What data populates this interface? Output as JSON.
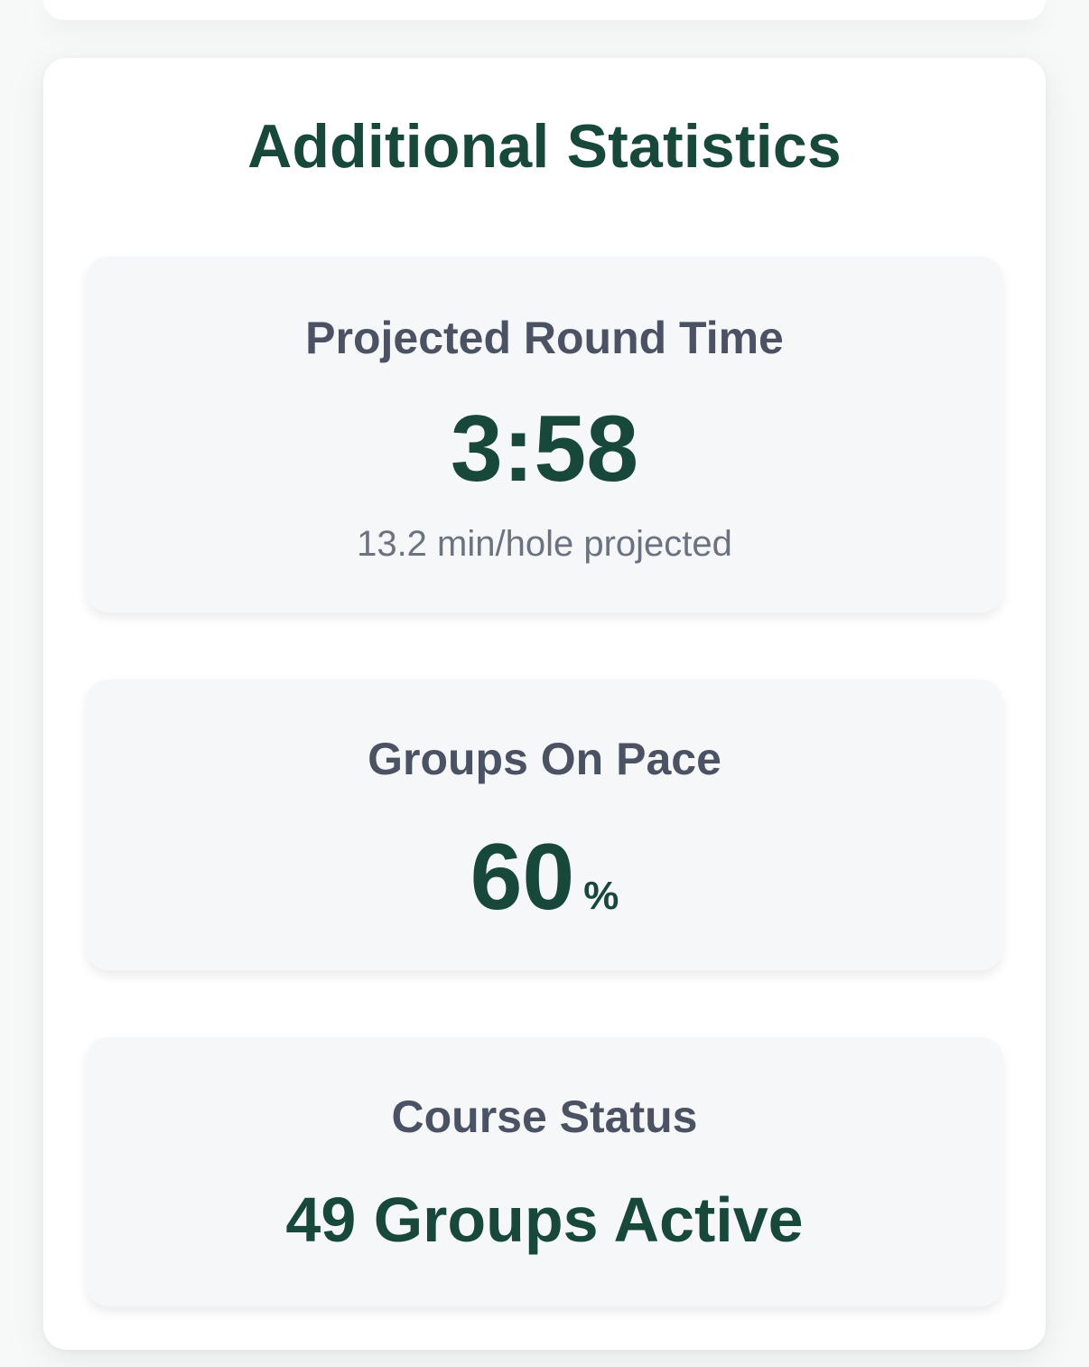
{
  "panel": {
    "title": "Additional Statistics"
  },
  "cards": {
    "projected_round_time": {
      "label": "Projected Round Time",
      "value": "3:58",
      "subtext": "13.2 min/hole projected"
    },
    "groups_on_pace": {
      "label": "Groups On Pace",
      "value": "60",
      "unit": "%"
    },
    "course_status": {
      "label": "Course Status",
      "value": "49 Groups Active"
    }
  },
  "colors": {
    "accent": "#17483a",
    "label": "#4a5263",
    "subtext": "#6b7280",
    "card_bg": "#f6f7f9"
  }
}
